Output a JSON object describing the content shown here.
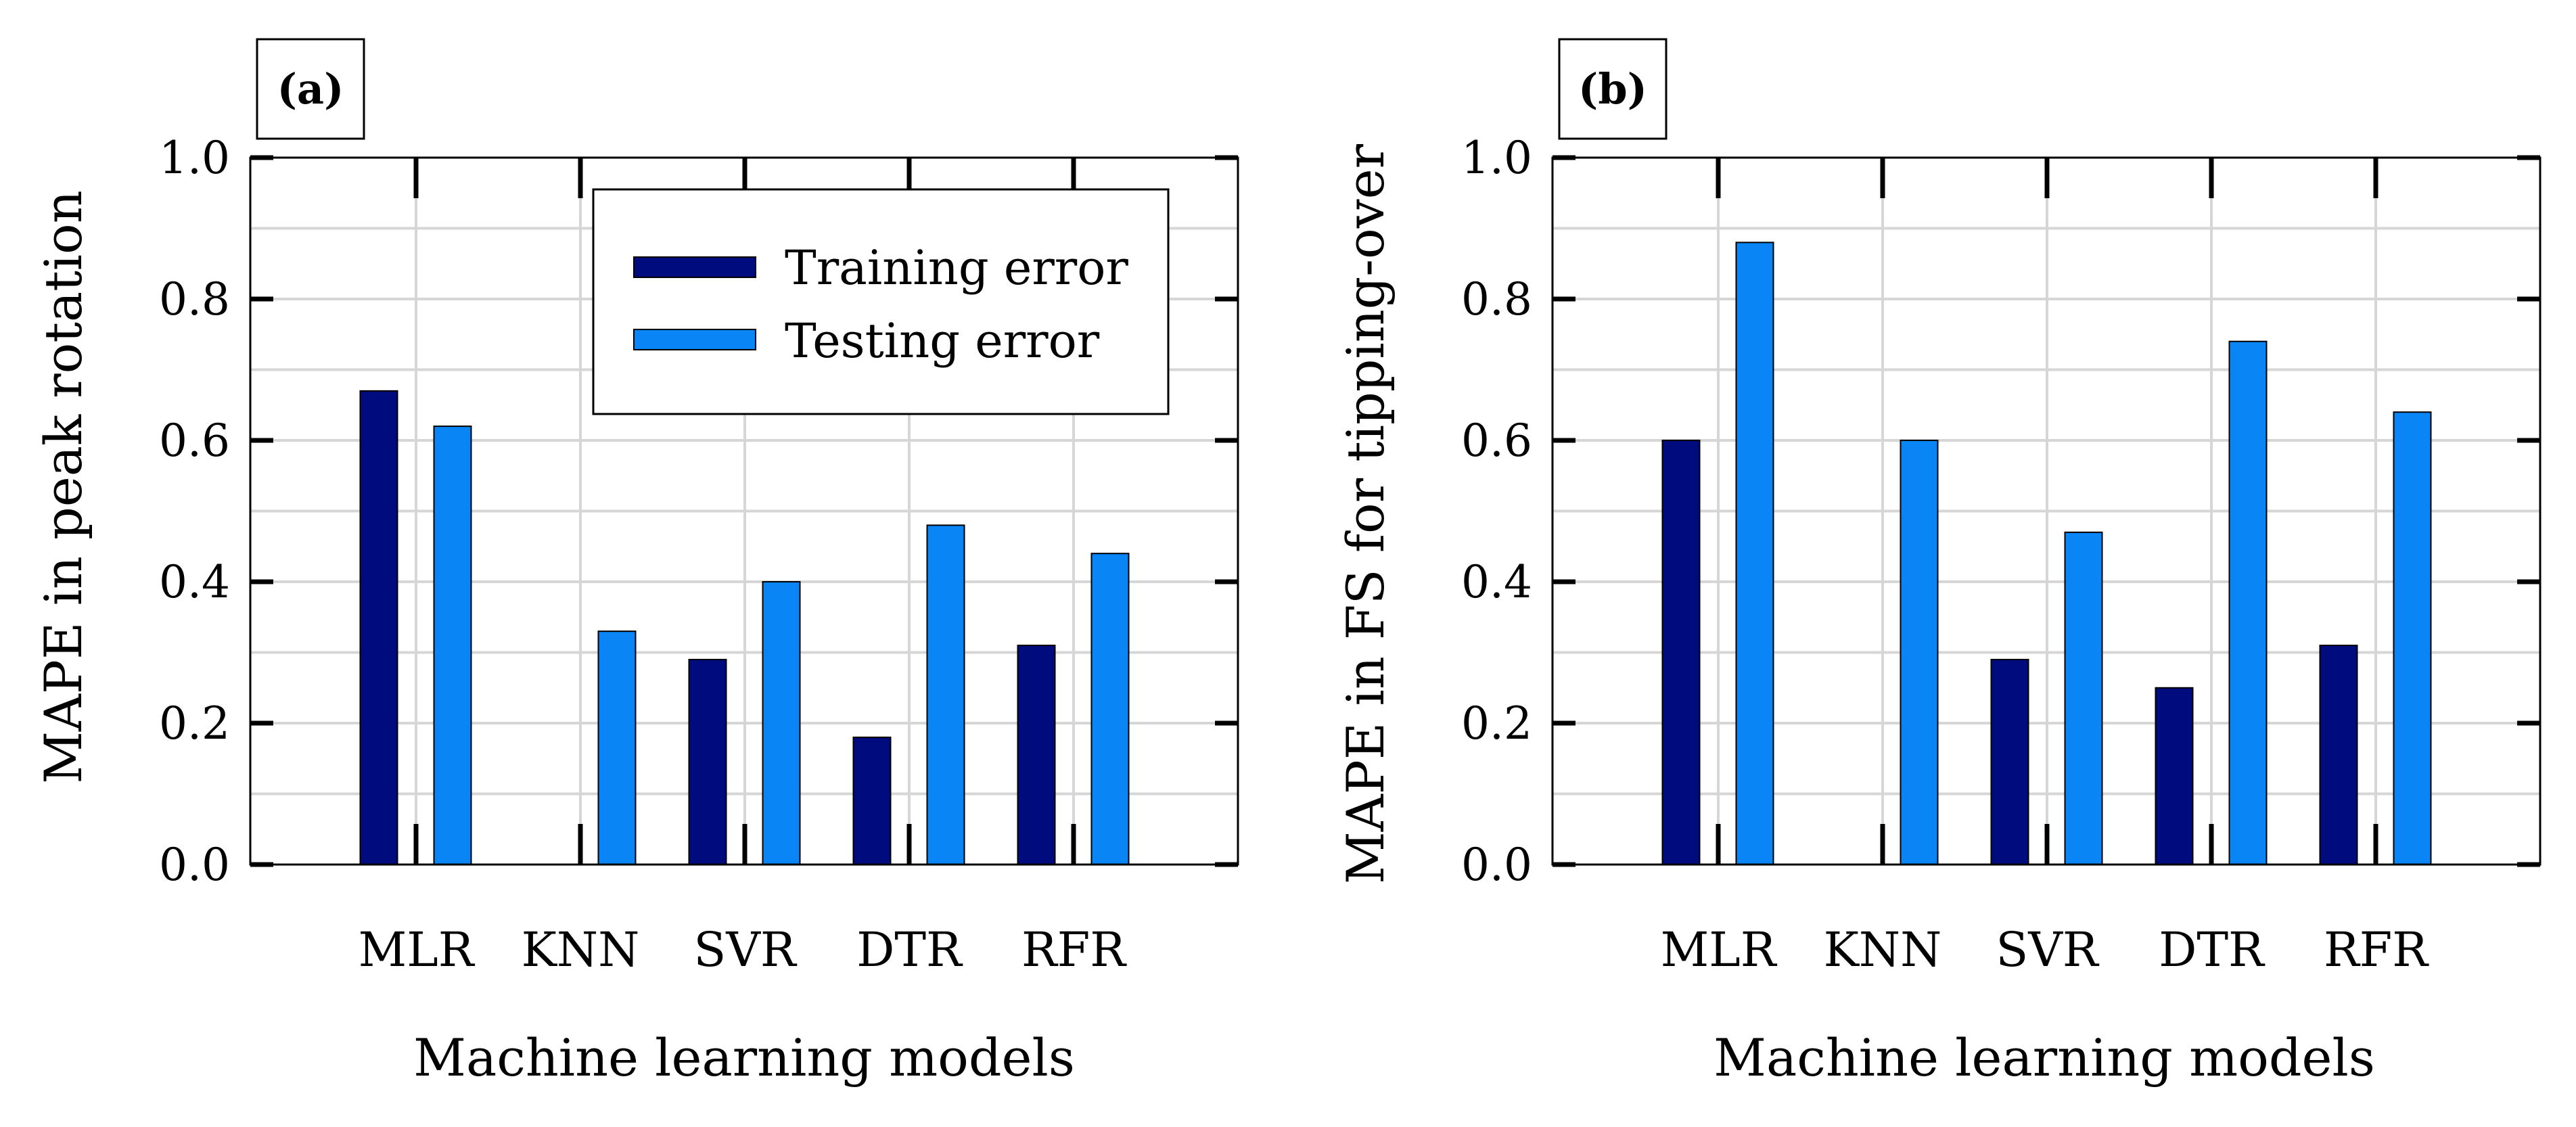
{
  "colors": {
    "training": "#000C7D",
    "testing": "#0A85F5",
    "grid": "#D6D6D6",
    "frame": "#000000"
  },
  "legend": {
    "training_label": "Training error",
    "testing_label": "Testing error"
  },
  "chart_data": [
    {
      "type": "bar",
      "panel_label": "(a)",
      "title": "",
      "xlabel": "Machine learning models",
      "ylabel": "MAPE in peak rotation",
      "categories": [
        "MLR",
        "KNN",
        "SVR",
        "DTR",
        "RFR"
      ],
      "series": [
        {
          "name": "Training error",
          "values": [
            0.67,
            0.0,
            0.29,
            0.18,
            0.31
          ]
        },
        {
          "name": "Testing error",
          "values": [
            0.62,
            0.33,
            0.4,
            0.48,
            0.44
          ]
        }
      ],
      "ylim": [
        0,
        1.0
      ],
      "yticks": [
        "0.0",
        "0.2",
        "0.4",
        "0.6",
        "0.8",
        "1.0"
      ],
      "grid": true,
      "legend_position": "top-right"
    },
    {
      "type": "bar",
      "panel_label": "(b)",
      "title": "",
      "xlabel": "Machine learning models",
      "ylabel": "MAPE in FS for tipping-over",
      "categories": [
        "MLR",
        "KNN",
        "SVR",
        "DTR",
        "RFR"
      ],
      "series": [
        {
          "name": "Training error",
          "values": [
            0.6,
            0.0,
            0.29,
            0.25,
            0.31
          ]
        },
        {
          "name": "Testing error",
          "values": [
            0.88,
            0.6,
            0.47,
            0.74,
            0.64
          ]
        }
      ],
      "ylim": [
        0,
        1.0
      ],
      "yticks": [
        "0.0",
        "0.2",
        "0.4",
        "0.6",
        "0.8",
        "1.0"
      ],
      "grid": true,
      "legend_position": "none"
    }
  ]
}
